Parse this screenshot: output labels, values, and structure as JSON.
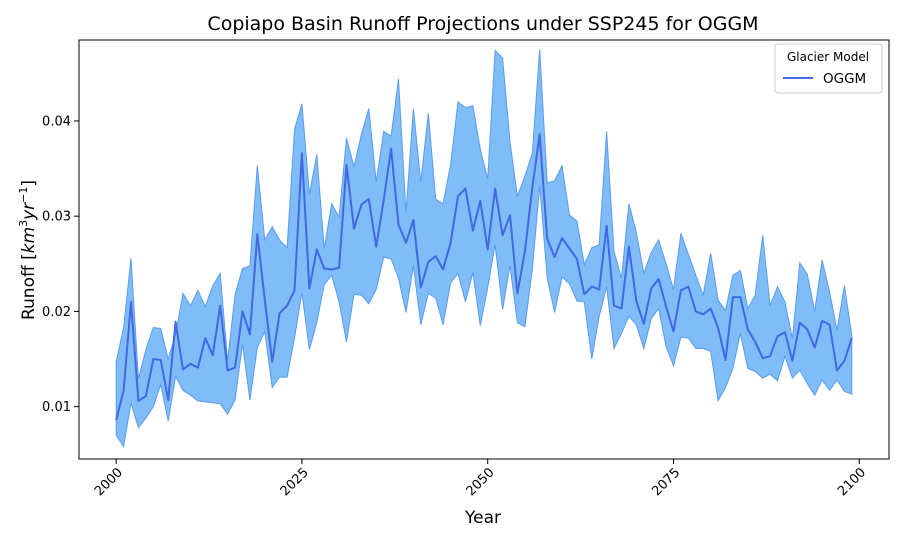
{
  "chart_data": {
    "type": "line",
    "title": "Copiapo Basin Runoff Projections under SSP245 for OGGM",
    "xlabel": "Year",
    "ylabel_main": "Runoff [",
    "ylabel_km": "km",
    "ylabel_km_exp": "3",
    "ylabel_yr": "yr",
    "ylabel_yr_exp": "−1",
    "ylabel_close": "]",
    "xlim": [
      1995,
      2104
    ],
    "ylim": [
      0.0045,
      0.0485
    ],
    "x_ticks": [
      2000,
      2025,
      2050,
      2075,
      2100
    ],
    "x_tick_labels": [
      "2000",
      "2025",
      "2050",
      "2075",
      "2100"
    ],
    "y_ticks": [
      0.01,
      0.02,
      0.03,
      0.04
    ],
    "y_tick_labels": [
      "0.01",
      "0.02",
      "0.03",
      "0.04"
    ],
    "grid": false,
    "legend": {
      "title": "Glacier Model",
      "placement": "upper right",
      "entries": [
        "OGGM"
      ]
    },
    "colors": {
      "line": "#4169e1",
      "band_fill": "#7fbcf8",
      "band_edge": "#5a9cec"
    },
    "years": [
      2000,
      2001,
      2002,
      2003,
      2004,
      2005,
      2006,
      2007,
      2008,
      2009,
      2010,
      2011,
      2012,
      2013,
      2014,
      2015,
      2016,
      2017,
      2018,
      2019,
      2020,
      2021,
      2022,
      2023,
      2024,
      2025,
      2026,
      2027,
      2028,
      2029,
      2030,
      2031,
      2032,
      2033,
      2034,
      2035,
      2036,
      2037,
      2038,
      2039,
      2040,
      2041,
      2042,
      2043,
      2044,
      2045,
      2046,
      2047,
      2048,
      2049,
      2050,
      2051,
      2052,
      2053,
      2054,
      2055,
      2056,
      2057,
      2058,
      2059,
      2060,
      2061,
      2062,
      2063,
      2064,
      2065,
      2066,
      2067,
      2068,
      2069,
      2070,
      2071,
      2072,
      2073,
      2074,
      2075,
      2076,
      2077,
      2078,
      2079,
      2080,
      2081,
      2082,
      2083,
      2084,
      2085,
      2086,
      2087,
      2088,
      2089,
      2090,
      2091,
      2092,
      2093,
      2094,
      2095,
      2096,
      2097,
      2098,
      2099
    ],
    "series": [
      {
        "name": "OGGM",
        "mean": [
          0.0086,
          0.0117,
          0.021,
          0.0106,
          0.0111,
          0.015,
          0.0149,
          0.0107,
          0.0189,
          0.0139,
          0.0145,
          0.0141,
          0.0172,
          0.0154,
          0.0206,
          0.0138,
          0.0141,
          0.02,
          0.0176,
          0.0281,
          0.0212,
          0.0147,
          0.0198,
          0.0206,
          0.0222,
          0.0366,
          0.0224,
          0.0265,
          0.0245,
          0.0244,
          0.0246,
          0.0354,
          0.0287,
          0.0312,
          0.0318,
          0.0268,
          0.0317,
          0.0371,
          0.0291,
          0.0272,
          0.0296,
          0.0225,
          0.0252,
          0.0258,
          0.0244,
          0.0272,
          0.0321,
          0.0329,
          0.0285,
          0.0316,
          0.0265,
          0.0329,
          0.028,
          0.0301,
          0.0219,
          0.0263,
          0.033,
          0.0386,
          0.0276,
          0.0257,
          0.0277,
          0.0266,
          0.0255,
          0.0218,
          0.0226,
          0.0223,
          0.029,
          0.0206,
          0.0203,
          0.0268,
          0.0211,
          0.0187,
          0.0224,
          0.0234,
          0.0205,
          0.0179,
          0.0222,
          0.0226,
          0.02,
          0.0197,
          0.0203,
          0.0183,
          0.0149,
          0.0215,
          0.0215,
          0.0181,
          0.0168,
          0.0151,
          0.0153,
          0.0174,
          0.0178,
          0.0148,
          0.0188,
          0.0181,
          0.0162,
          0.019,
          0.0186,
          0.0138,
          0.0148,
          0.0172
        ],
        "upper": [
          0.0147,
          0.0183,
          0.0256,
          0.0129,
          0.016,
          0.0183,
          0.0182,
          0.015,
          0.0176,
          0.0219,
          0.0206,
          0.0222,
          0.0205,
          0.0227,
          0.024,
          0.0148,
          0.0218,
          0.0245,
          0.0248,
          0.0353,
          0.0275,
          0.0289,
          0.0275,
          0.0267,
          0.0391,
          0.0418,
          0.0323,
          0.0365,
          0.0266,
          0.0313,
          0.0299,
          0.0382,
          0.0352,
          0.0386,
          0.0413,
          0.0336,
          0.0389,
          0.0384,
          0.0444,
          0.0304,
          0.0413,
          0.0336,
          0.0408,
          0.0318,
          0.0313,
          0.0354,
          0.042,
          0.0414,
          0.0416,
          0.037,
          0.0339,
          0.0474,
          0.0466,
          0.0378,
          0.0321,
          0.0342,
          0.0366,
          0.0475,
          0.0335,
          0.0337,
          0.0353,
          0.0301,
          0.0295,
          0.0249,
          0.0267,
          0.027,
          0.0389,
          0.0263,
          0.0235,
          0.0313,
          0.0283,
          0.024,
          0.0262,
          0.0275,
          0.025,
          0.0223,
          0.0282,
          0.026,
          0.0238,
          0.0217,
          0.0261,
          0.0212,
          0.0201,
          0.0238,
          0.0243,
          0.0203,
          0.0217,
          0.028,
          0.0206,
          0.0226,
          0.021,
          0.0171,
          0.0251,
          0.0239,
          0.02,
          0.0254,
          0.022,
          0.018,
          0.0227,
          0.0175
        ],
        "lower": [
          0.007,
          0.0058,
          0.0104,
          0.0078,
          0.0088,
          0.01,
          0.0123,
          0.0085,
          0.0132,
          0.0117,
          0.0112,
          0.0106,
          0.0105,
          0.0104,
          0.0103,
          0.0092,
          0.0107,
          0.0166,
          0.0107,
          0.0162,
          0.0179,
          0.012,
          0.0131,
          0.0131,
          0.0172,
          0.022,
          0.016,
          0.0188,
          0.0228,
          0.0238,
          0.021,
          0.0168,
          0.0218,
          0.0217,
          0.0208,
          0.0223,
          0.0257,
          0.0255,
          0.0235,
          0.0199,
          0.0248,
          0.0186,
          0.0219,
          0.0214,
          0.0186,
          0.023,
          0.024,
          0.021,
          0.0241,
          0.0185,
          0.0225,
          0.027,
          0.0202,
          0.0248,
          0.0188,
          0.0184,
          0.0244,
          0.0332,
          0.0235,
          0.0199,
          0.0236,
          0.0229,
          0.0211,
          0.021,
          0.015,
          0.0195,
          0.0226,
          0.0161,
          0.0177,
          0.0195,
          0.0186,
          0.0161,
          0.0192,
          0.0203,
          0.0163,
          0.0143,
          0.0173,
          0.0172,
          0.0161,
          0.0161,
          0.0158,
          0.0106,
          0.012,
          0.014,
          0.0177,
          0.014,
          0.0137,
          0.013,
          0.0134,
          0.0127,
          0.0153,
          0.013,
          0.0138,
          0.0124,
          0.0112,
          0.0128,
          0.0117,
          0.0128,
          0.0116,
          0.0113
        ]
      }
    ]
  }
}
